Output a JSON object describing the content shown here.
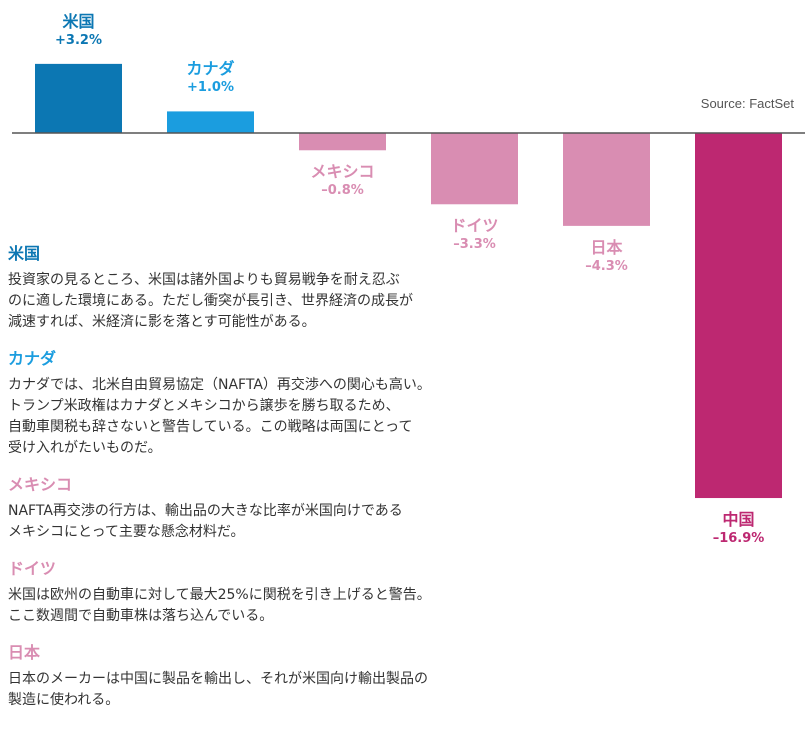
{
  "chart_data": {
    "type": "bar",
    "categories": [
      "米国",
      "カナダ",
      "メキシコ",
      "ドイツ",
      "日本",
      "中国"
    ],
    "values": [
      3.2,
      1.0,
      -0.8,
      -3.3,
      -4.3,
      -16.9
    ],
    "value_labels": [
      "+3.2%",
      "+1.0%",
      "–0.8%",
      "–3.3%",
      "–4.3%",
      "–16.9%"
    ],
    "colors": [
      "#0c77b3",
      "#1b9ddf",
      "#d98db2",
      "#d98db2",
      "#d98db2",
      "#bd2871"
    ],
    "label_colors": [
      "#0c77b3",
      "#1b9ddf",
      "#d98db2",
      "#d98db2",
      "#d98db2",
      "#bd2871"
    ],
    "source": "Source: FactSet",
    "title": "",
    "xlabel": "",
    "ylabel": "",
    "ylim": [
      -16.9,
      3.2
    ]
  },
  "notes": [
    {
      "title": "米国",
      "color": "#0c77b3",
      "lines": [
        "投資家の見るところ、米国は諸外国よりも貿易戦争を耐え忍ぶ",
        "のに適した環境にある。ただし衝突が長引き、世界経済の成長が",
        "減速すれば、米経済に影を落とす可能性がある。"
      ]
    },
    {
      "title": "カナダ",
      "color": "#1b9ddf",
      "lines": [
        "カナダでは、北米自由貿易協定（NAFTA）再交渉への関心も高い。",
        "トランプ米政権はカナダとメキシコから譲歩を勝ち取るため、",
        "自動車関税も辞さないと警告している。この戦略は両国にとって",
        "受け入れがたいものだ。"
      ]
    },
    {
      "title": "メキシコ",
      "color": "#d98db2",
      "lines": [
        "NAFTA再交渉の行方は、輸出品の大きな比率が米国向けである",
        "メキシコにとって主要な懸念材料だ。"
      ]
    },
    {
      "title": "ドイツ",
      "color": "#d98db2",
      "lines": [
        "米国は欧州の自動車に対して最大25%に関税を引き上げると警告。",
        "ここ数週間で自動車株は落ち込んでいる。"
      ]
    },
    {
      "title": "日本",
      "color": "#d98db2",
      "lines": [
        "日本のメーカーは中国に製品を輸出し、それが米国向け輸出製品の",
        "製造に使われる。"
      ]
    }
  ]
}
